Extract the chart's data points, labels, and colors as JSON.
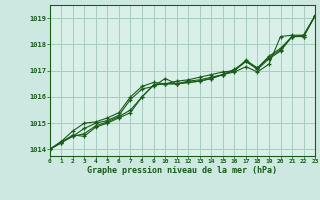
{
  "title": "Graphe pression niveau de la mer (hPa)",
  "background_color": "#cce8e0",
  "plot_bg_color": "#d8f0e8",
  "grid_color": "#a8ccc0",
  "line_color": "#1a5c1a",
  "marker_color": "#1a5c1a",
  "xlim": [
    0,
    23
  ],
  "ylim": [
    1013.75,
    1019.5
  ],
  "yticks": [
    1014,
    1015,
    1016,
    1017,
    1018,
    1019
  ],
  "xticks": [
    0,
    1,
    2,
    3,
    4,
    5,
    6,
    7,
    8,
    9,
    10,
    11,
    12,
    13,
    14,
    15,
    16,
    17,
    18,
    19,
    20,
    21,
    22,
    23
  ],
  "series": [
    [
      1014.0,
      1014.3,
      1014.5,
      1014.8,
      1015.0,
      1015.1,
      1015.3,
      1015.9,
      1016.3,
      1016.4,
      1016.7,
      1016.5,
      1016.6,
      1016.65,
      1016.75,
      1016.85,
      1016.95,
      1017.15,
      1016.95,
      1017.25,
      1018.3,
      1018.35,
      1018.35,
      1019.1
    ],
    [
      1014.0,
      1014.25,
      1014.5,
      1014.6,
      1014.9,
      1015.05,
      1015.25,
      1015.5,
      1016.0,
      1016.45,
      1016.5,
      1016.5,
      1016.55,
      1016.6,
      1016.7,
      1016.85,
      1017.05,
      1017.35,
      1017.05,
      1017.45,
      1017.75,
      1018.3,
      1018.3,
      1019.1
    ],
    [
      1014.0,
      1014.25,
      1014.55,
      1014.5,
      1014.85,
      1015.0,
      1015.2,
      1015.4,
      1016.0,
      1016.45,
      1016.5,
      1016.5,
      1016.55,
      1016.6,
      1016.7,
      1016.85,
      1017.0,
      1017.35,
      1017.1,
      1017.5,
      1017.8,
      1018.3,
      1018.3,
      1019.1
    ],
    [
      1014.0,
      1014.3,
      1014.7,
      1015.0,
      1015.05,
      1015.2,
      1015.4,
      1016.0,
      1016.4,
      1016.55,
      1016.5,
      1016.6,
      1016.65,
      1016.75,
      1016.85,
      1016.95,
      1017.0,
      1017.4,
      1017.1,
      1017.55,
      1017.85,
      1018.3,
      1018.35,
      1019.1
    ]
  ]
}
